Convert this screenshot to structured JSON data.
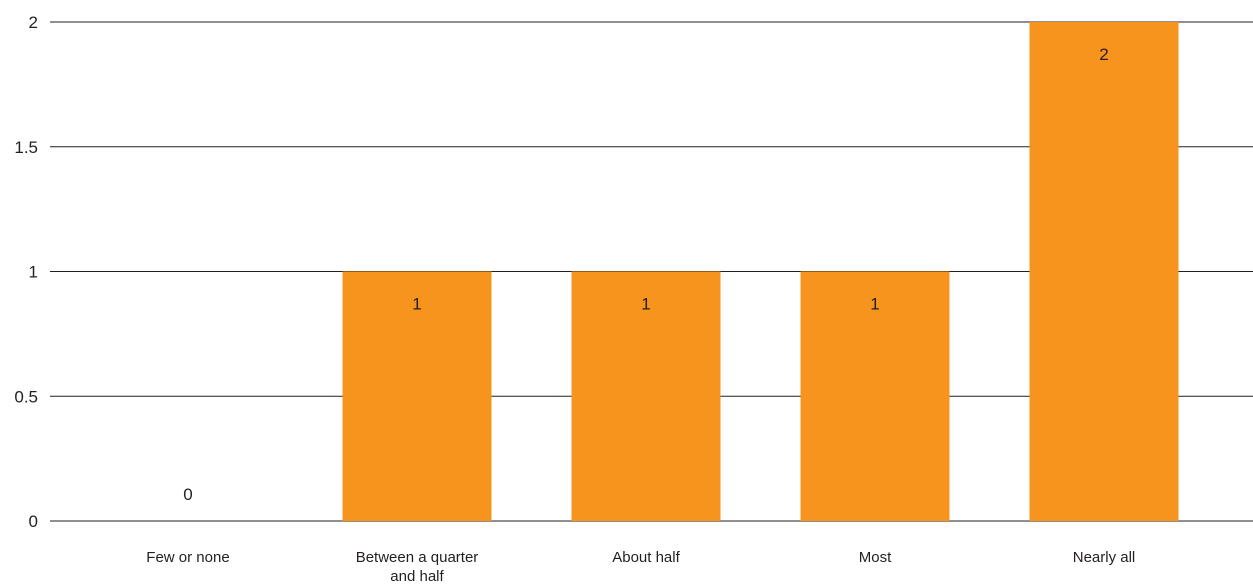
{
  "chart_data": {
    "type": "bar",
    "title": "",
    "xlabel": "",
    "ylabel": "",
    "categories": [
      "Few or none",
      "Between a quarter and half",
      "About half",
      "Most",
      "Nearly all"
    ],
    "category_label_lines": [
      [
        "Few or none"
      ],
      [
        "Between a quarter",
        "and half"
      ],
      [
        "About half"
      ],
      [
        "Most"
      ],
      [
        "Nearly all"
      ]
    ],
    "values": [
      0,
      1,
      1,
      1,
      2
    ],
    "data_labels": [
      "0",
      "1",
      "1",
      "1",
      "2"
    ],
    "ylim": [
      0,
      2
    ],
    "yticks": [
      0,
      0.5,
      1,
      1.5,
      2
    ],
    "ytick_labels": [
      "0",
      "0.5",
      "1",
      "1.5",
      "2"
    ],
    "grid": true,
    "legend": "none",
    "bar_color": "#f7941d",
    "text_color": "#231f20",
    "grid_color": "#231f20"
  }
}
